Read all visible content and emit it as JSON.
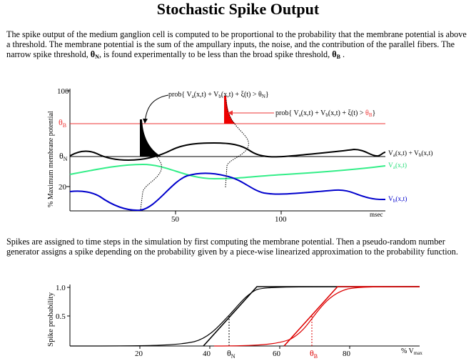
{
  "page": {
    "title": "Stochastic Spike Output",
    "p1": {
      "a": "The spike output of the medium ganglion cell is computed to be proportional to the probability that the membrane potential is above a threshold. The membrane potential is the sum of the ampullary inputs, the noise, and the contribution of the parallel fibers. The narrow spike threshold, ",
      "theta": "θ",
      "sub_n": "N",
      "b": ", is found experimentally to be less than the broad spike threshold, ",
      "sub_b": "B",
      "c": " ."
    },
    "p2": "Spikes are assigned to time steps in the simulation by first computing the membrane potential. Then a pseudo-random number generator assigns a spike depending on the probability given by a piece-wise linearized approximation to the probability function."
  },
  "figure1": {
    "y_axis_label": "% Maximum membrane potential",
    "y_ticks": {
      "t100": "100",
      "t20": "20"
    },
    "theta_b": {
      "main": "θ",
      "sub": "B"
    },
    "theta_n": {
      "main": "θ",
      "sub": "N"
    },
    "x_ticks": {
      "t50": "50",
      "t100": "100"
    },
    "x_unit": "msec",
    "annotation_n": {
      "pre": "prob{ V",
      "s1": "a",
      "mid1": "(x,t) + V",
      "s2": "b",
      "mid2": "(x,t) + ξ(t) > θ",
      "s3": "N",
      "post": "}"
    },
    "annotation_b": {
      "pre": "prob{ V",
      "s1": "a",
      "mid1": "(x,t) + V",
      "s2": "b",
      "mid2": "(x,t) + ξ(t) > ",
      "theta": "θ",
      "s3": "B",
      "post": "}"
    },
    "series_sum": {
      "pre": "V",
      "s1": "a",
      "mid": "(x,t) + V",
      "s2": "b",
      "post": "(x,t)"
    },
    "series_va": {
      "pre": "V",
      "s1": "a",
      "post": "(x,t)"
    },
    "series_vb": {
      "pre": "V",
      "s1": "b",
      "post": "(x,t)"
    },
    "colors": {
      "sum": "#000000",
      "va": "#33ee88",
      "vb": "#0000cc",
      "threshold_b": "#ee3333",
      "spike_b": "#ee0000"
    }
  },
  "figure2": {
    "y_axis_label": "Spike probability",
    "y_ticks": {
      "t1": "1.0",
      "t05": "0.5"
    },
    "x_ticks": {
      "t20": "20",
      "t40": "40",
      "t60": "60",
      "t80": "80"
    },
    "theta_n": {
      "main": "θ",
      "sub": "N"
    },
    "theta_b": {
      "main": "θ",
      "sub": "B"
    },
    "x_unit": {
      "pre": "% V",
      "sub": "max"
    },
    "colors": {
      "narrow": "#000000",
      "broad": "#dd0000"
    }
  }
}
